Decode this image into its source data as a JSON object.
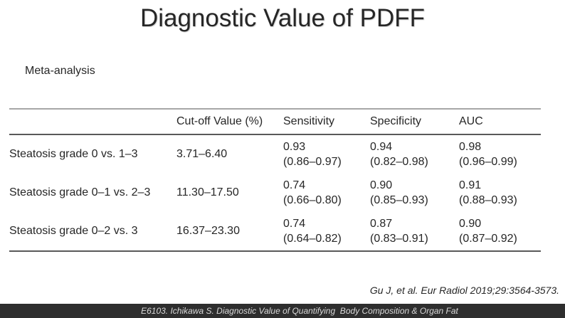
{
  "slide": {
    "title": "Diagnostic Value of PDFF",
    "subtitle": "Meta-analysis",
    "citation": "Gu J, et al. Eur Radiol 2019;29:3564-3573.",
    "footer": "E6103. Ichikawa S. Diagnostic Value of Quantifying  Body Composition & Organ Fat"
  },
  "table": {
    "headers": [
      "",
      "Cut-off Value (%)",
      "Sensitivity",
      "Specificity",
      "AUC"
    ],
    "rows": [
      {
        "label": "Steatosis grade 0 vs. 1–3",
        "cutoff": "3.71–6.40",
        "sensitivity": {
          "value": "0.93",
          "ci": "(0.86–0.97)"
        },
        "specificity": {
          "value": "0.94",
          "ci": "(0.82–0.98)"
        },
        "auc": {
          "value": "0.98",
          "ci": "(0.96–0.99)"
        }
      },
      {
        "label": "Steatosis grade 0–1 vs. 2–3",
        "cutoff": "11.30–17.50",
        "sensitivity": {
          "value": "0.74",
          "ci": "(0.66–0.80)"
        },
        "specificity": {
          "value": "0.90",
          "ci": "(0.85–0.93)"
        },
        "auc": {
          "value": "0.91",
          "ci": "(0.88–0.93)"
        }
      },
      {
        "label": "Steatosis grade 0–2 vs. 3",
        "cutoff": "16.37–23.30",
        "sensitivity": {
          "value": "0.74",
          "ci": "(0.64–0.82)"
        },
        "specificity": {
          "value": "0.87",
          "ci": "(0.83–0.91)"
        },
        "auc": {
          "value": "0.90",
          "ci": "(0.87–0.92)"
        }
      }
    ]
  },
  "colors": {
    "text": "#262626",
    "rule_top": "#a6a6a6",
    "rule_dark": "#595959",
    "footer_bg": "#2e2e2e",
    "footer_text": "#d9d9d9"
  }
}
